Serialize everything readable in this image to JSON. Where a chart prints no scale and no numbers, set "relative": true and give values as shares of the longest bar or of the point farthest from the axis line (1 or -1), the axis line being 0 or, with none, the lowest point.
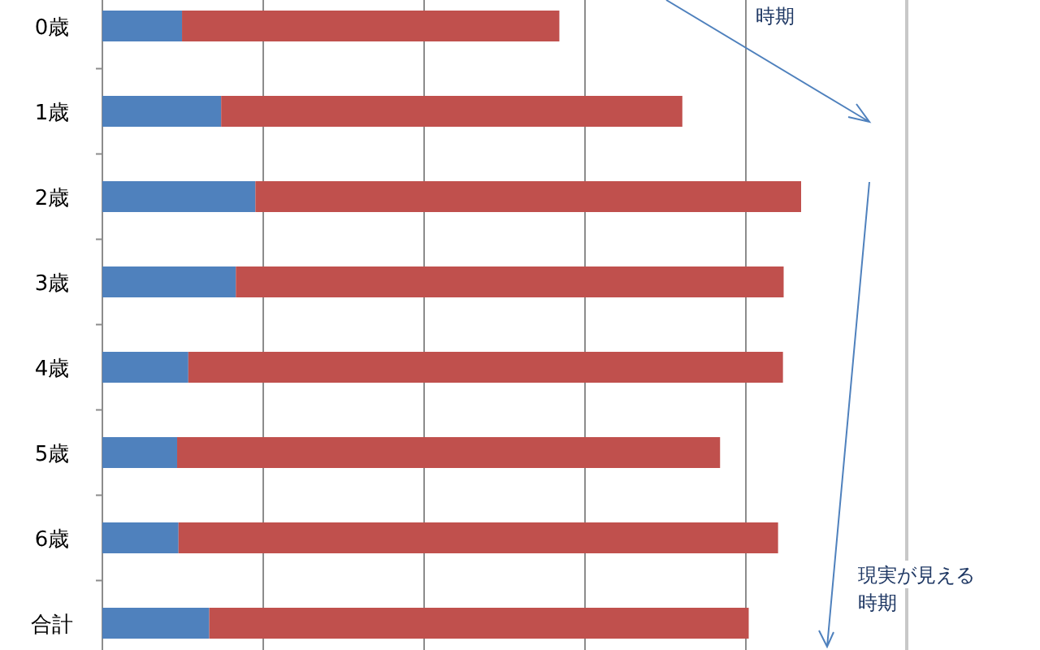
{
  "chart_data": {
    "type": "bar",
    "orientation": "horizontal",
    "stacked": true,
    "relative": true,
    "grid": "x",
    "categories": [
      "0歳",
      "1歳",
      "2歳",
      "3歳",
      "4歳",
      "5歳",
      "6歳",
      "合計"
    ],
    "series": [
      {
        "color": "#4f81bd",
        "values": [
          0.114,
          0.17,
          0.219,
          0.191,
          0.123,
          0.107,
          0.109,
          0.153
        ]
      },
      {
        "color": "#c0504d",
        "values": [
          0.54,
          0.66,
          0.781,
          0.784,
          0.851,
          0.777,
          0.858,
          0.772
        ]
      }
    ],
    "annotations": [
      "時期",
      "現実が見える時期"
    ]
  }
}
